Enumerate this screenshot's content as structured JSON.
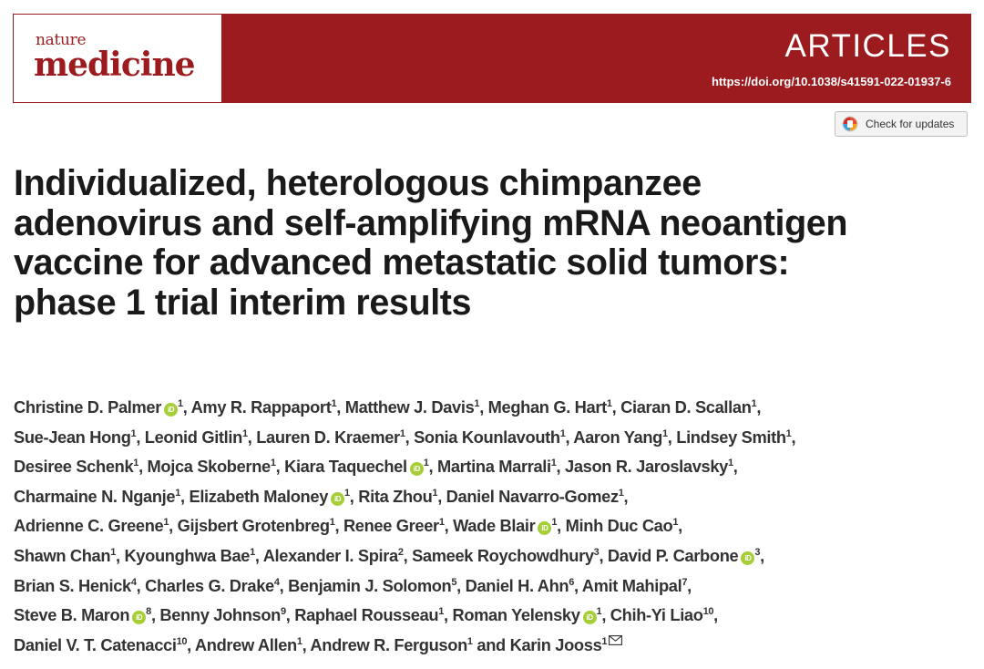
{
  "header": {
    "logo_top": "nature",
    "logo_bottom": "medicine",
    "section": "ARTICLES",
    "doi": "https://doi.org/10.1038/s41591-022-01937-6",
    "brand_color": "#9b1b1f"
  },
  "check_updates": {
    "label": "Check for updates",
    "icon": "check-for-updates-icon"
  },
  "title_lines": [
    "Individualized, heterologous chimpanzee",
    "adenovirus and self-amplifying mRNA neoantigen",
    "vaccine for advanced metastatic solid tumors:",
    "phase 1 trial interim results"
  ],
  "orcid_label": "iD",
  "orcid_color": "#a6ce39",
  "author_lines": [
    [
      {
        "name": "Christine D. Palmer",
        "sup": "1",
        "orcid": true,
        "sep": ", "
      },
      {
        "name": "Amy R. Rappaport",
        "sup": "1",
        "sep": ", "
      },
      {
        "name": "Matthew J. Davis",
        "sup": "1",
        "sep": ", "
      },
      {
        "name": "Meghan G. Hart",
        "sup": "1",
        "sep": ", "
      },
      {
        "name": "Ciaran D. Scallan",
        "sup": "1",
        "sep": ","
      }
    ],
    [
      {
        "name": "Sue-Jean Hong",
        "sup": "1",
        "sep": ", "
      },
      {
        "name": "Leonid Gitlin",
        "sup": "1",
        "sep": ", "
      },
      {
        "name": "Lauren D. Kraemer",
        "sup": "1",
        "sep": ", "
      },
      {
        "name": "Sonia Kounlavouth",
        "sup": "1",
        "sep": ", "
      },
      {
        "name": "Aaron Yang",
        "sup": "1",
        "sep": ", "
      },
      {
        "name": "Lindsey Smith",
        "sup": "1",
        "sep": ","
      }
    ],
    [
      {
        "name": "Desiree Schenk",
        "sup": "1",
        "sep": ", "
      },
      {
        "name": "Mojca Skoberne",
        "sup": "1",
        "sep": ", "
      },
      {
        "name": "Kiara Taquechel",
        "sup": "1",
        "orcid": true,
        "sep": ", "
      },
      {
        "name": "Martina Marrali",
        "sup": "1",
        "sep": ", "
      },
      {
        "name": "Jason R. Jaroslavsky",
        "sup": "1",
        "sep": ","
      }
    ],
    [
      {
        "name": "Charmaine N. Nganje",
        "sup": "1",
        "sep": ", "
      },
      {
        "name": "Elizabeth Maloney",
        "sup": "1",
        "orcid": true,
        "sep": ", "
      },
      {
        "name": "Rita Zhou",
        "sup": "1",
        "sep": ", "
      },
      {
        "name": "Daniel Navarro-Gomez",
        "sup": "1",
        "sep": ","
      }
    ],
    [
      {
        "name": "Adrienne C. Greene",
        "sup": "1",
        "sep": ", "
      },
      {
        "name": "Gijsbert Grotenbreg",
        "sup": "1",
        "sep": ", "
      },
      {
        "name": "Renee Greer",
        "sup": "1",
        "sep": ", "
      },
      {
        "name": "Wade Blair",
        "sup": "1",
        "orcid": true,
        "sep": ", "
      },
      {
        "name": "Minh Duc Cao",
        "sup": "1",
        "sep": ","
      }
    ],
    [
      {
        "name": "Shawn Chan",
        "sup": "1",
        "sep": ", "
      },
      {
        "name": "Kyounghwa Bae",
        "sup": "1",
        "sep": ", "
      },
      {
        "name": "Alexander I. Spira",
        "sup": "2",
        "sep": ", "
      },
      {
        "name": "Sameek Roychowdhury",
        "sup": "3",
        "sep": ", "
      },
      {
        "name": "David P. Carbone",
        "sup": "3",
        "orcid": true,
        "sep": ","
      }
    ],
    [
      {
        "name": "Brian S. Henick",
        "sup": "4",
        "sep": ", "
      },
      {
        "name": "Charles G. Drake",
        "sup": "4",
        "sep": ", "
      },
      {
        "name": "Benjamin J. Solomon",
        "sup": "5",
        "sep": ", "
      },
      {
        "name": "Daniel H. Ahn",
        "sup": "6",
        "sep": ", "
      },
      {
        "name": "Amit Mahipal",
        "sup": "7",
        "sep": ","
      }
    ],
    [
      {
        "name": "Steve B. Maron",
        "sup": "8",
        "orcid": true,
        "sep": ", "
      },
      {
        "name": "Benny Johnson",
        "sup": "9",
        "sep": ", "
      },
      {
        "name": "Raphael Rousseau",
        "sup": "1",
        "sep": ", "
      },
      {
        "name": "Roman Yelensky",
        "sup": "1",
        "orcid": true,
        "sep": ", "
      },
      {
        "name": "Chih-Yi Liao",
        "sup": "10",
        "sep": ","
      }
    ],
    [
      {
        "name": "Daniel V. T. Catenacci",
        "sup": "10",
        "sep": ", "
      },
      {
        "name": "Andrew Allen",
        "sup": "1",
        "sep": ", "
      },
      {
        "name": "Andrew R. Ferguson",
        "sup": "1",
        "sep": " and "
      },
      {
        "name": "Karin Jooss",
        "sup": "1",
        "envelope": true,
        "sep": ""
      }
    ]
  ]
}
